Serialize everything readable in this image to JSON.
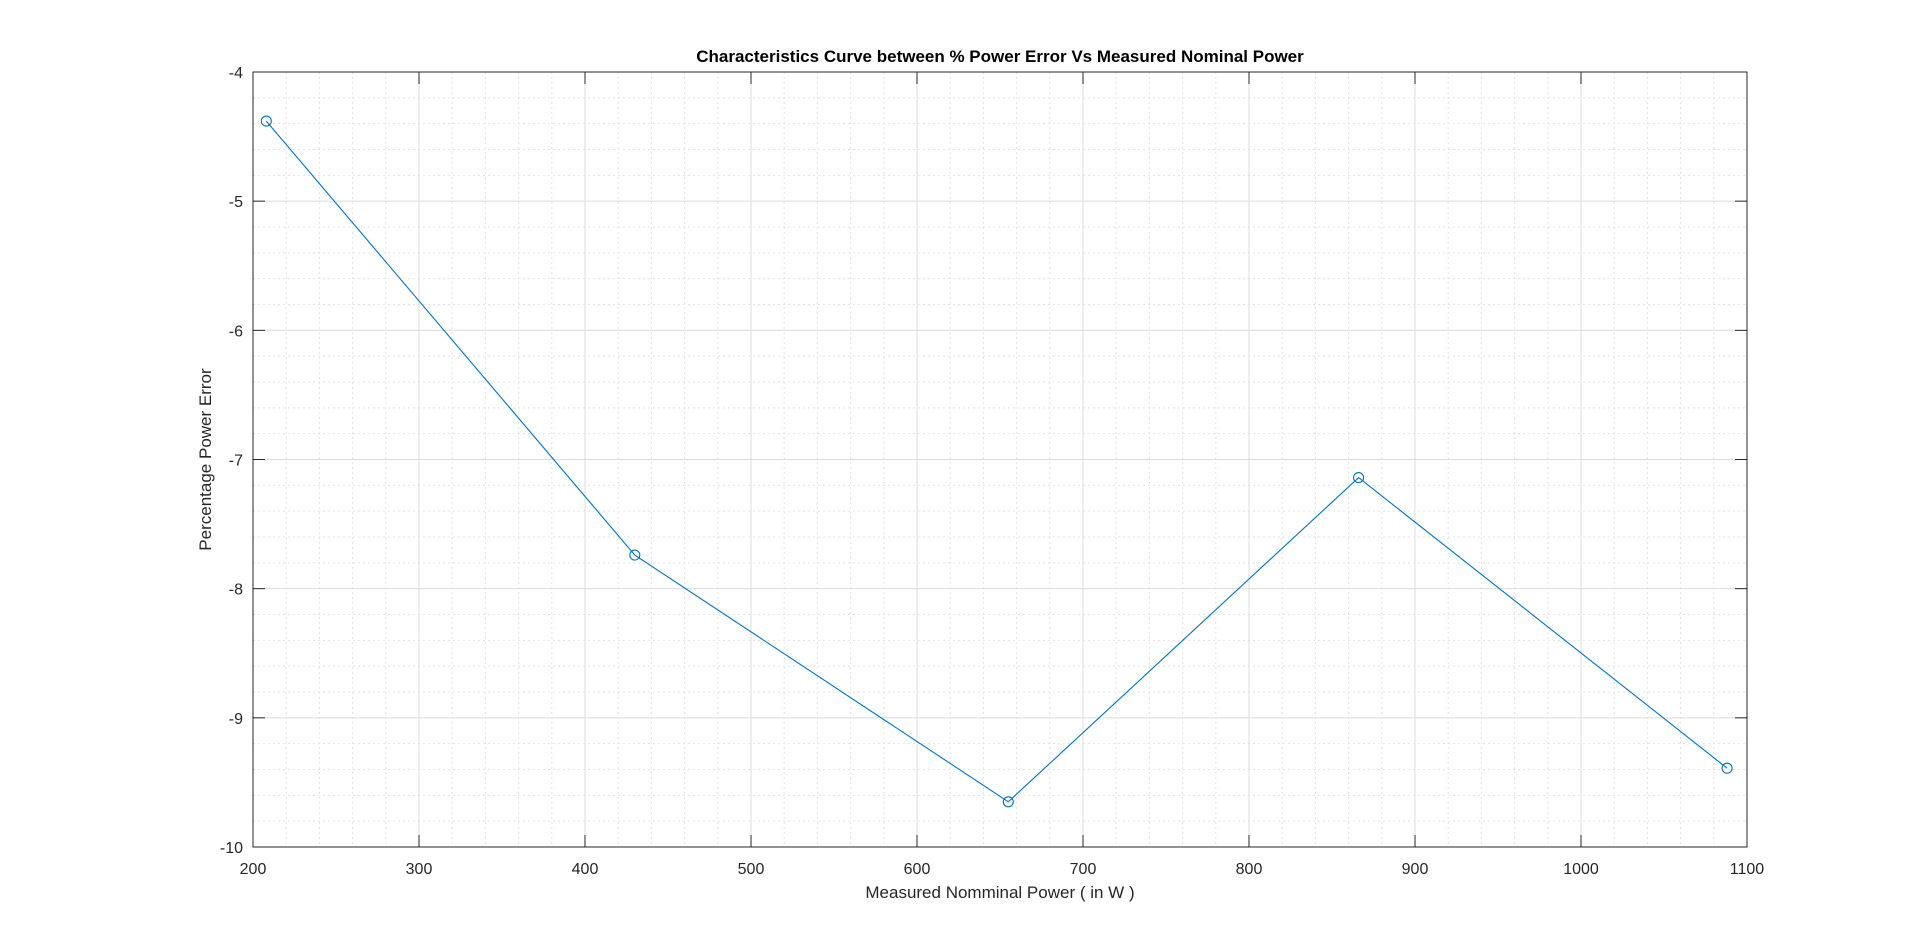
{
  "chart_data": {
    "type": "line",
    "title": "Characteristics Curve between % Power Error Vs Measured Nominal Power",
    "xlabel": "Measured Nomminal Power ( in W )",
    "ylabel": "Percentage Power Error",
    "xlim": [
      200,
      1100
    ],
    "ylim": [
      -10,
      -4
    ],
    "xticks": [
      200,
      300,
      400,
      500,
      600,
      700,
      800,
      900,
      1000,
      1100
    ],
    "xtick_labels": [
      "200",
      "300",
      "400",
      "500",
      "600",
      "700",
      "800",
      "900",
      "1000",
      "1100"
    ],
    "yticks": [
      -10,
      -9,
      -8,
      -7,
      -6,
      -5,
      -4
    ],
    "ytick_labels": [
      "-10",
      "-9",
      "-8",
      "-7",
      "-6",
      "-5",
      "-4"
    ],
    "grid": true,
    "minor_grid": true,
    "marker": "circle",
    "series": [
      {
        "x": [
          208,
          430,
          655,
          866,
          1088
        ],
        "y": [
          -4.38,
          -7.74,
          -9.65,
          -7.14,
          -9.39
        ],
        "color": "#0072BD"
      }
    ]
  }
}
